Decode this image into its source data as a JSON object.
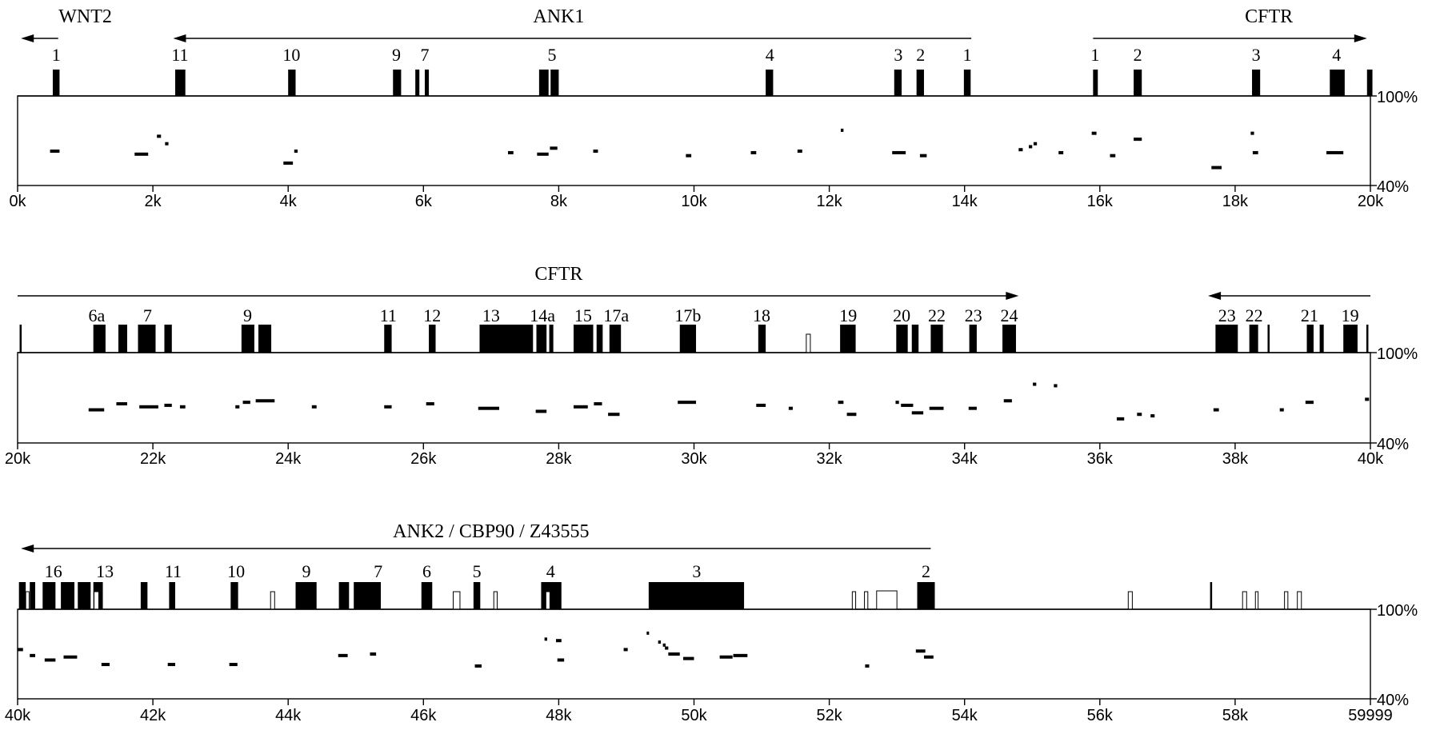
{
  "pct_labels": {
    "top": "100%",
    "bottom": "40%"
  },
  "last_tick_label": "59999",
  "colors": {
    "ink": "#000000",
    "paper": "#ffffff"
  },
  "panels": [
    {
      "start": 0,
      "end": 20000,
      "gene_labels": [
        {
          "text": "WNT2",
          "x": 1000
        },
        {
          "text": "ANK1",
          "x": 8000
        },
        {
          "text": "CFTR",
          "x": 18500
        }
      ],
      "arrows": [
        {
          "from": 600,
          "to": 50
        },
        {
          "from": 14100,
          "to": 2300
        },
        {
          "from": 15900,
          "to": 19950
        }
      ],
      "exons": [
        {
          "s": 520,
          "e": 620
        },
        {
          "s": 2330,
          "e": 2480
        },
        {
          "s": 4000,
          "e": 4110
        },
        {
          "s": 5550,
          "e": 5670
        },
        {
          "s": 5880,
          "e": 5940
        },
        {
          "s": 6020,
          "e": 6080
        },
        {
          "s": 7710,
          "e": 7850
        },
        {
          "s": 7880,
          "e": 8000
        },
        {
          "s": 11060,
          "e": 11170
        },
        {
          "s": 12960,
          "e": 13070
        },
        {
          "s": 13290,
          "e": 13400
        },
        {
          "s": 13990,
          "e": 14090
        },
        {
          "s": 15900,
          "e": 15970
        },
        {
          "s": 16500,
          "e": 16620
        },
        {
          "s": 18250,
          "e": 18370
        },
        {
          "s": 19400,
          "e": 19620
        },
        {
          "s": 19950,
          "e": 20030
        }
      ],
      "open_exons": [],
      "exon_numbers": [
        {
          "text": "1",
          "x": 570
        },
        {
          "text": "11",
          "x": 2400
        },
        {
          "text": "10",
          "x": 4050
        },
        {
          "text": "9",
          "x": 5600
        },
        {
          "text": "7",
          "x": 6020
        },
        {
          "text": "5",
          "x": 7900
        },
        {
          "text": "4",
          "x": 11120
        },
        {
          "text": "3",
          "x": 13020
        },
        {
          "text": "2",
          "x": 13350
        },
        {
          "text": "1",
          "x": 14040
        },
        {
          "text": "1",
          "x": 15930
        },
        {
          "text": "2",
          "x": 16560
        },
        {
          "text": "3",
          "x": 18310
        },
        {
          "text": "4",
          "x": 19500
        }
      ],
      "segments": [
        {
          "s": 480,
          "e": 620,
          "p": 63
        },
        {
          "s": 1730,
          "e": 1930,
          "p": 61
        },
        {
          "s": 2060,
          "e": 2120,
          "p": 73
        },
        {
          "s": 2180,
          "e": 2230,
          "p": 68
        },
        {
          "s": 3930,
          "e": 4070,
          "p": 55
        },
        {
          "s": 4090,
          "e": 4140,
          "p": 63
        },
        {
          "s": 7250,
          "e": 7330,
          "p": 62
        },
        {
          "s": 7680,
          "e": 7850,
          "p": 61
        },
        {
          "s": 7870,
          "e": 7980,
          "p": 65
        },
        {
          "s": 8510,
          "e": 8580,
          "p": 63
        },
        {
          "s": 9880,
          "e": 9960,
          "p": 60
        },
        {
          "s": 10840,
          "e": 10920,
          "p": 62
        },
        {
          "s": 11530,
          "e": 11600,
          "p": 63
        },
        {
          "s": 12170,
          "e": 12210,
          "p": 77
        },
        {
          "s": 12930,
          "e": 13130,
          "p": 62
        },
        {
          "s": 13340,
          "e": 13440,
          "p": 60
        },
        {
          "s": 14800,
          "e": 14860,
          "p": 64
        },
        {
          "s": 14950,
          "e": 15000,
          "p": 66
        },
        {
          "s": 15020,
          "e": 15070,
          "p": 68
        },
        {
          "s": 15390,
          "e": 15460,
          "p": 62
        },
        {
          "s": 15880,
          "e": 15950,
          "p": 75
        },
        {
          "s": 16150,
          "e": 16230,
          "p": 60
        },
        {
          "s": 16500,
          "e": 16620,
          "p": 71
        },
        {
          "s": 17650,
          "e": 17800,
          "p": 52
        },
        {
          "s": 18230,
          "e": 18280,
          "p": 75
        },
        {
          "s": 18260,
          "e": 18340,
          "p": 62
        },
        {
          "s": 19350,
          "e": 19600,
          "p": 62
        }
      ],
      "ticks": [
        "0k",
        "2k",
        "4k",
        "6k",
        "8k",
        "10k",
        "12k",
        "14k",
        "16k",
        "18k",
        "20k"
      ]
    },
    {
      "start": 20000,
      "end": 40000,
      "gene_labels": [
        {
          "text": "CFTR",
          "x": 28000
        }
      ],
      "arrows": [
        {
          "from": 20000,
          "to": 34800
        },
        {
          "from": 40000,
          "to": 37600
        }
      ],
      "exons": [
        {
          "s": 20030,
          "e": 20060
        },
        {
          "s": 21120,
          "e": 21300
        },
        {
          "s": 21490,
          "e": 21620
        },
        {
          "s": 21780,
          "e": 22040
        },
        {
          "s": 22170,
          "e": 22280
        },
        {
          "s": 23310,
          "e": 23500
        },
        {
          "s": 23560,
          "e": 23750
        },
        {
          "s": 25420,
          "e": 25530
        },
        {
          "s": 26080,
          "e": 26180
        },
        {
          "s": 26830,
          "e": 27620
        },
        {
          "s": 27670,
          "e": 27820
        },
        {
          "s": 27860,
          "e": 27920
        },
        {
          "s": 28220,
          "e": 28510
        },
        {
          "s": 28560,
          "e": 28650
        },
        {
          "s": 28750,
          "e": 28920
        },
        {
          "s": 29790,
          "e": 30030
        },
        {
          "s": 30950,
          "e": 31060
        },
        {
          "s": 32160,
          "e": 32390
        },
        {
          "s": 32990,
          "e": 33160
        },
        {
          "s": 33220,
          "e": 33320
        },
        {
          "s": 33500,
          "e": 33680
        },
        {
          "s": 34070,
          "e": 34180
        },
        {
          "s": 34560,
          "e": 34760
        },
        {
          "s": 37710,
          "e": 38040
        },
        {
          "s": 38210,
          "e": 38340
        },
        {
          "s": 38480,
          "e": 38510
        },
        {
          "s": 39060,
          "e": 39160
        },
        {
          "s": 39250,
          "e": 39310
        },
        {
          "s": 39600,
          "e": 39810
        },
        {
          "s": 39940,
          "e": 39970
        }
      ],
      "open_exons": [
        {
          "s": 31660,
          "e": 31720
        }
      ],
      "exon_numbers": [
        {
          "text": "6a",
          "x": 21170
        },
        {
          "text": "7",
          "x": 21920
        },
        {
          "text": "9",
          "x": 23400
        },
        {
          "text": "11",
          "x": 25480
        },
        {
          "text": "12",
          "x": 26130
        },
        {
          "text": "13",
          "x": 27000
        },
        {
          "text": "14a",
          "x": 27760
        },
        {
          "text": "15",
          "x": 28360
        },
        {
          "text": "17a",
          "x": 28850
        },
        {
          "text": "17b",
          "x": 29910
        },
        {
          "text": "18",
          "x": 31000
        },
        {
          "text": "19",
          "x": 32280
        },
        {
          "text": "20",
          "x": 33070
        },
        {
          "text": "22",
          "x": 33590
        },
        {
          "text": "23",
          "x": 34130
        },
        {
          "text": "24",
          "x": 34660
        },
        {
          "text": "23",
          "x": 37880
        },
        {
          "text": "22",
          "x": 38280
        },
        {
          "text": "21",
          "x": 39100
        },
        {
          "text": "19",
          "x": 39700
        }
      ],
      "segments": [
        {
          "s": 21050,
          "e": 21280,
          "p": 62
        },
        {
          "s": 21460,
          "e": 21620,
          "p": 66
        },
        {
          "s": 21800,
          "e": 22080,
          "p": 64
        },
        {
          "s": 22170,
          "e": 22280,
          "p": 65
        },
        {
          "s": 22400,
          "e": 22480,
          "p": 64
        },
        {
          "s": 23220,
          "e": 23280,
          "p": 64
        },
        {
          "s": 23330,
          "e": 23440,
          "p": 67
        },
        {
          "s": 23520,
          "e": 23800,
          "p": 68
        },
        {
          "s": 24350,
          "e": 24420,
          "p": 64
        },
        {
          "s": 25420,
          "e": 25530,
          "p": 64
        },
        {
          "s": 26040,
          "e": 26160,
          "p": 66
        },
        {
          "s": 26810,
          "e": 27120,
          "p": 63
        },
        {
          "s": 27660,
          "e": 27820,
          "p": 61
        },
        {
          "s": 28220,
          "e": 28430,
          "p": 64
        },
        {
          "s": 28520,
          "e": 28640,
          "p": 66
        },
        {
          "s": 28730,
          "e": 28900,
          "p": 59
        },
        {
          "s": 29760,
          "e": 30030,
          "p": 67
        },
        {
          "s": 30920,
          "e": 31060,
          "p": 65
        },
        {
          "s": 31400,
          "e": 31460,
          "p": 63
        },
        {
          "s": 32130,
          "e": 32210,
          "p": 67
        },
        {
          "s": 32260,
          "e": 32400,
          "p": 59
        },
        {
          "s": 32980,
          "e": 33030,
          "p": 67
        },
        {
          "s": 33060,
          "e": 33240,
          "p": 65
        },
        {
          "s": 33220,
          "e": 33390,
          "p": 60
        },
        {
          "s": 33480,
          "e": 33690,
          "p": 63
        },
        {
          "s": 34060,
          "e": 34180,
          "p": 63
        },
        {
          "s": 34580,
          "e": 34700,
          "p": 68
        },
        {
          "s": 35010,
          "e": 35060,
          "p": 79
        },
        {
          "s": 35320,
          "e": 35370,
          "p": 78
        },
        {
          "s": 36250,
          "e": 36360,
          "p": 56
        },
        {
          "s": 36550,
          "e": 36620,
          "p": 59
        },
        {
          "s": 36750,
          "e": 36810,
          "p": 58
        },
        {
          "s": 37680,
          "e": 37760,
          "p": 62
        },
        {
          "s": 38660,
          "e": 38720,
          "p": 62
        },
        {
          "s": 39040,
          "e": 39160,
          "p": 67
        },
        {
          "s": 39920,
          "e": 39980,
          "p": 69
        }
      ],
      "ticks": [
        "20k",
        "22k",
        "24k",
        "26k",
        "28k",
        "30k",
        "32k",
        "34k",
        "36k",
        "38k",
        "40k"
      ]
    },
    {
      "start": 40000,
      "end": 60000,
      "gene_labels": [
        {
          "text": "ANK2 / CBP90 / Z43555",
          "x": 47000
        }
      ],
      "arrows": [
        {
          "from": 53500,
          "to": 40050
        }
      ],
      "exons": [
        {
          "s": 40020,
          "e": 40120
        },
        {
          "s": 40180,
          "e": 40260
        },
        {
          "s": 40370,
          "e": 40560
        },
        {
          "s": 40640,
          "e": 40840
        },
        {
          "s": 40890,
          "e": 41080
        },
        {
          "s": 41120,
          "e": 41260
        },
        {
          "s": 41820,
          "e": 41920
        },
        {
          "s": 42240,
          "e": 42330
        },
        {
          "s": 43150,
          "e": 43260
        },
        {
          "s": 44110,
          "e": 44420
        },
        {
          "s": 44750,
          "e": 44900
        },
        {
          "s": 44970,
          "e": 45370
        },
        {
          "s": 45970,
          "e": 46130
        },
        {
          "s": 46740,
          "e": 46840
        },
        {
          "s": 47740,
          "e": 48040
        },
        {
          "s": 49330,
          "e": 50740
        },
        {
          "s": 53300,
          "e": 53560
        },
        {
          "s": 57630,
          "e": 57660
        }
      ],
      "open_exons": [
        {
          "s": 40120,
          "e": 40170
        },
        {
          "s": 41130,
          "e": 41200
        },
        {
          "s": 43740,
          "e": 43800
        },
        {
          "s": 46440,
          "e": 46540
        },
        {
          "s": 47040,
          "e": 47090
        },
        {
          "s": 47810,
          "e": 47870
        },
        {
          "s": 52340,
          "e": 52390
        },
        {
          "s": 52520,
          "e": 52570
        },
        {
          "s": 52700,
          "e": 53000
        },
        {
          "s": 56420,
          "e": 56480
        },
        {
          "s": 58110,
          "e": 58170
        },
        {
          "s": 58300,
          "e": 58340
        },
        {
          "s": 58730,
          "e": 58780
        },
        {
          "s": 58920,
          "e": 58980
        }
      ],
      "exon_numbers": [
        {
          "text": "16",
          "x": 40530
        },
        {
          "text": "13",
          "x": 41290
        },
        {
          "text": "11",
          "x": 42300
        },
        {
          "text": "10",
          "x": 43230
        },
        {
          "text": "9",
          "x": 44270
        },
        {
          "text": "7",
          "x": 45330
        },
        {
          "text": "6",
          "x": 46050
        },
        {
          "text": "5",
          "x": 46790
        },
        {
          "text": "4",
          "x": 47880
        },
        {
          "text": "3",
          "x": 50040
        },
        {
          "text": "2",
          "x": 53430
        }
      ],
      "segments": [
        {
          "s": 40000,
          "e": 40080,
          "p": 73
        },
        {
          "s": 40180,
          "e": 40260,
          "p": 69
        },
        {
          "s": 40400,
          "e": 40560,
          "p": 66
        },
        {
          "s": 40680,
          "e": 40880,
          "p": 68
        },
        {
          "s": 41240,
          "e": 41360,
          "p": 63
        },
        {
          "s": 42220,
          "e": 42330,
          "p": 63
        },
        {
          "s": 43130,
          "e": 43250,
          "p": 63
        },
        {
          "s": 44740,
          "e": 44880,
          "p": 69
        },
        {
          "s": 45210,
          "e": 45300,
          "p": 70
        },
        {
          "s": 46760,
          "e": 46860,
          "p": 62
        },
        {
          "s": 47790,
          "e": 47830,
          "p": 80
        },
        {
          "s": 47960,
          "e": 48040,
          "p": 79
        },
        {
          "s": 47980,
          "e": 48080,
          "p": 66
        },
        {
          "s": 48960,
          "e": 49020,
          "p": 73
        },
        {
          "s": 49300,
          "e": 49330,
          "p": 84
        },
        {
          "s": 49470,
          "e": 49510,
          "p": 78
        },
        {
          "s": 49540,
          "e": 49580,
          "p": 76
        },
        {
          "s": 49570,
          "e": 49620,
          "p": 74
        },
        {
          "s": 49620,
          "e": 49790,
          "p": 70
        },
        {
          "s": 49840,
          "e": 50000,
          "p": 67
        },
        {
          "s": 50380,
          "e": 50570,
          "p": 68
        },
        {
          "s": 50580,
          "e": 50790,
          "p": 69
        },
        {
          "s": 52530,
          "e": 52590,
          "p": 62
        },
        {
          "s": 53280,
          "e": 53420,
          "p": 72
        },
        {
          "s": 53400,
          "e": 53540,
          "p": 68
        }
      ],
      "ticks": [
        "40k",
        "42k",
        "44k",
        "46k",
        "48k",
        "50k",
        "52k",
        "54k",
        "56k",
        "58k",
        "59999"
      ]
    }
  ]
}
